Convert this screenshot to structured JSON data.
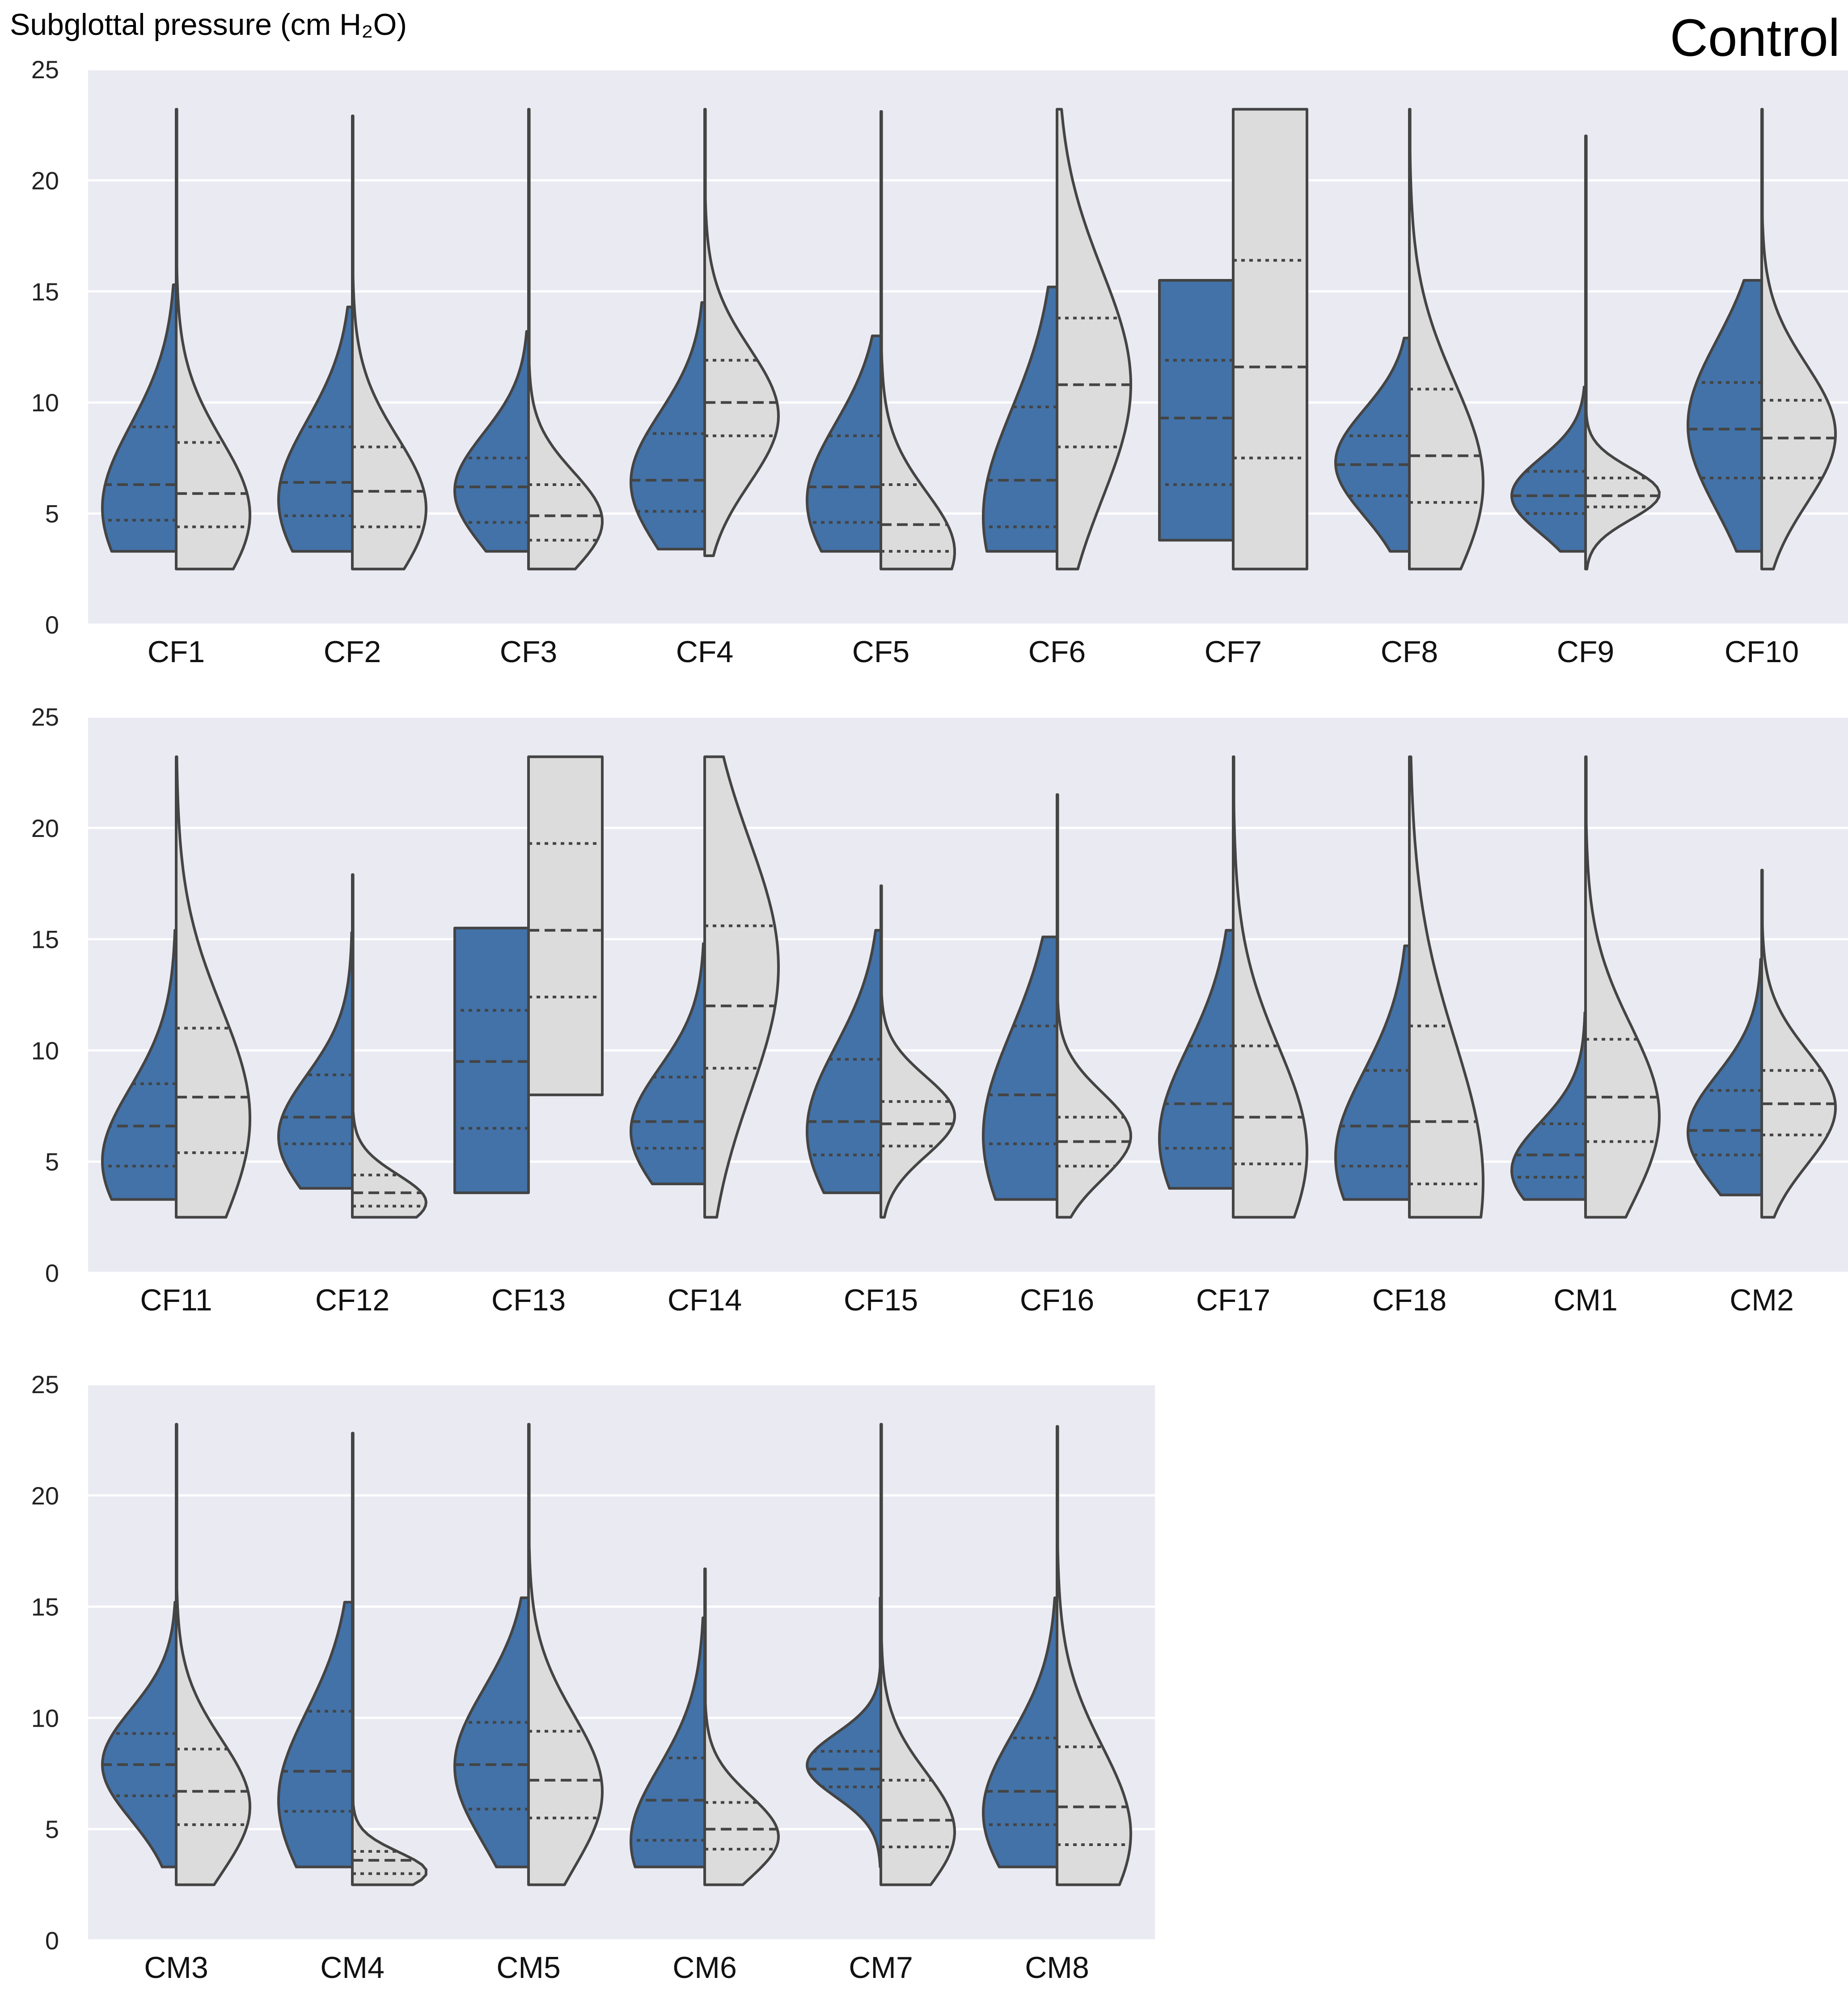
{
  "chart_data": {
    "type": "violin",
    "title": "Control",
    "ylabel": "Subglottal pressure (cm H₂O)",
    "ylim": [
      0,
      25
    ],
    "yticks": [
      0,
      5,
      10,
      15,
      20,
      25
    ],
    "grid": true,
    "split": true,
    "colors": {
      "left": "#4272a8",
      "right": "#dcdcdc",
      "outline": "#444444",
      "panel_bg": "#eaeaf2"
    },
    "panels": [
      {
        "categories": [
          "CF1",
          "CF2",
          "CF3",
          "CF4",
          "CF5",
          "CF6",
          "CF7",
          "CF8",
          "CF9",
          "CF10"
        ],
        "violins": [
          {
            "left": {
              "min": 3.3,
              "max": 15.3,
              "q": [
                4.7,
                6.3,
                8.9
              ],
              "peak": 5.1
            },
            "right": {
              "min": 2.5,
              "max": 23.2,
              "q": [
                4.4,
                5.9,
                8.2
              ],
              "peak": 4.8
            }
          },
          {
            "left": {
              "min": 3.3,
              "max": 14.3,
              "q": [
                4.9,
                6.4,
                8.9
              ],
              "peak": 5.5
            },
            "right": {
              "min": 2.5,
              "max": 22.9,
              "q": [
                4.4,
                6.0,
                8.0
              ],
              "peak": 5.1
            }
          },
          {
            "left": {
              "min": 3.3,
              "max": 13.2,
              "q": [
                4.6,
                6.2,
                7.5
              ],
              "peak": 6.0
            },
            "right": {
              "min": 2.5,
              "max": 23.2,
              "q": [
                3.8,
                4.9,
                6.3
              ],
              "peak": 4.6
            }
          },
          {
            "left": {
              "min": 3.4,
              "max": 14.5,
              "q": [
                5.1,
                6.5,
                8.6
              ],
              "peak": 6.4
            },
            "right": {
              "min": 3.1,
              "max": 23.2,
              "q": [
                8.5,
                10.0,
                11.9
              ],
              "peak": 9.3
            }
          },
          {
            "left": {
              "min": 3.3,
              "max": 13.0,
              "q": [
                4.6,
                6.2,
                8.5
              ],
              "peak": 5.5
            },
            "right": {
              "min": 2.5,
              "max": 23.1,
              "q": [
                3.3,
                4.5,
                6.3
              ],
              "peak": 3.1
            }
          },
          {
            "left": {
              "min": 3.3,
              "max": 15.2,
              "q": [
                4.4,
                6.5,
                9.8
              ],
              "peak": 4.6
            },
            "right": {
              "min": 2.5,
              "max": 23.2,
              "q": [
                8.0,
                10.8,
                13.8
              ],
              "peak": 10.8
            }
          },
          {
            "left": {
              "min": 3.8,
              "max": 15.5,
              "q": [
                6.3,
                9.3,
                11.9
              ],
              "peak": 11.0,
              "flat": true
            },
            "right": {
              "min": 2.5,
              "max": 23.2,
              "q": [
                7.5,
                11.6,
                16.4
              ],
              "peak": 15.5,
              "flat": true
            }
          },
          {
            "left": {
              "min": 3.3,
              "max": 12.9,
              "q": [
                5.8,
                7.2,
                8.5
              ],
              "peak": 7.3
            },
            "right": {
              "min": 2.5,
              "max": 23.2,
              "q": [
                5.5,
                7.6,
                10.6
              ],
              "peak": 6.2
            }
          },
          {
            "left": {
              "min": 3.3,
              "max": 10.7,
              "q": [
                5.0,
                5.8,
                6.9
              ],
              "peak": 5.8
            },
            "right": {
              "min": 2.5,
              "max": 22.0,
              "q": [
                5.3,
                5.8,
                6.6
              ],
              "peak": 5.9
            }
          },
          {
            "left": {
              "min": 3.3,
              "max": 15.5,
              "q": [
                6.6,
                8.8,
                10.9
              ],
              "peak": 9.0
            },
            "right": {
              "min": 2.5,
              "max": 23.2,
              "q": [
                6.6,
                8.4,
                10.1
              ],
              "peak": 8.6
            }
          }
        ]
      },
      {
        "categories": [
          "CF11",
          "CF12",
          "CF13",
          "CF14",
          "CF15",
          "CF16",
          "CF17",
          "CF18",
          "CM1",
          "CM2"
        ],
        "violins": [
          {
            "left": {
              "min": 3.3,
              "max": 15.4,
              "q": [
                4.8,
                6.6,
                8.5
              ],
              "peak": 4.8
            },
            "right": {
              "min": 2.5,
              "max": 23.2,
              "q": [
                5.4,
                7.9,
                11.0
              ],
              "peak": 6.8
            }
          },
          {
            "left": {
              "min": 3.8,
              "max": 15.3,
              "q": [
                5.8,
                7.0,
                8.9
              ],
              "peak": 6.0
            },
            "right": {
              "min": 2.5,
              "max": 17.9,
              "q": [
                3.0,
                3.6,
                4.4
              ],
              "peak": 3.1
            }
          },
          {
            "left": {
              "min": 3.6,
              "max": 15.5,
              "q": [
                6.5,
                9.5,
                11.8
              ],
              "peak": 12.5,
              "flat": true
            },
            "right": {
              "min": 8.0,
              "max": 23.2,
              "q": [
                12.4,
                15.4,
                19.3
              ],
              "peak": 12.3,
              "flat": true
            }
          },
          {
            "left": {
              "min": 4.0,
              "max": 14.8,
              "q": [
                5.6,
                6.8,
                8.8
              ],
              "peak": 6.3
            },
            "right": {
              "min": 2.5,
              "max": 23.2,
              "q": [
                9.2,
                12.0,
                15.6
              ],
              "peak": 14.0
            }
          },
          {
            "left": {
              "min": 3.6,
              "max": 15.4,
              "q": [
                5.3,
                6.8,
                9.6
              ],
              "peak": 6.3
            },
            "right": {
              "min": 2.5,
              "max": 17.4,
              "q": [
                5.7,
                6.7,
                7.7
              ],
              "peak": 7.1
            }
          },
          {
            "left": {
              "min": 3.3,
              "max": 15.1,
              "q": [
                5.8,
                8.0,
                11.1
              ],
              "peak": 5.9
            },
            "right": {
              "min": 2.5,
              "max": 21.5,
              "q": [
                4.8,
                5.9,
                7.0
              ],
              "peak": 6.2
            }
          },
          {
            "left": {
              "min": 3.8,
              "max": 15.4,
              "q": [
                5.6,
                7.6,
                10.2
              ],
              "peak": 5.8
            },
            "right": {
              "min": 2.5,
              "max": 23.2,
              "q": [
                4.9,
                7.0,
                10.2
              ],
              "peak": 5.2
            }
          },
          {
            "left": {
              "min": 3.3,
              "max": 14.7,
              "q": [
                4.8,
                6.6,
                9.1
              ],
              "peak": 5.0
            },
            "right": {
              "min": 2.5,
              "max": 23.2,
              "q": [
                4.0,
                6.8,
                11.1
              ],
              "peak": 3.7
            }
          },
          {
            "left": {
              "min": 3.3,
              "max": 11.7,
              "q": [
                4.3,
                5.3,
                6.7
              ],
              "peak": 4.5
            },
            "right": {
              "min": 2.5,
              "max": 23.2,
              "q": [
                5.9,
                7.9,
                10.5
              ],
              "peak": 6.9
            }
          },
          {
            "left": {
              "min": 3.5,
              "max": 14.1,
              "q": [
                5.3,
                6.4,
                8.2
              ],
              "peak": 6.3
            },
            "right": {
              "min": 2.5,
              "max": 18.1,
              "q": [
                6.2,
                7.6,
                9.1
              ],
              "peak": 7.4
            }
          }
        ]
      },
      {
        "categories": [
          "CM3",
          "CM4",
          "CM5",
          "CM6",
          "CM7",
          "CM8"
        ],
        "violins": [
          {
            "left": {
              "min": 3.3,
              "max": 15.2,
              "q": [
                6.5,
                7.9,
                9.3
              ],
              "peak": 7.9
            },
            "right": {
              "min": 2.5,
              "max": 23.2,
              "q": [
                5.2,
                6.7,
                8.6
              ],
              "peak": 5.9
            }
          },
          {
            "left": {
              "min": 3.3,
              "max": 15.2,
              "q": [
                5.8,
                7.6,
                10.3
              ],
              "peak": 6.1
            },
            "right": {
              "min": 2.5,
              "max": 22.8,
              "q": [
                3.0,
                3.6,
                4.0
              ],
              "peak": 3.0
            }
          },
          {
            "left": {
              "min": 3.3,
              "max": 15.4,
              "q": [
                5.9,
                7.9,
                9.8
              ],
              "peak": 7.8
            },
            "right": {
              "min": 2.5,
              "max": 23.2,
              "q": [
                5.5,
                7.2,
                9.4
              ],
              "peak": 6.6
            }
          },
          {
            "left": {
              "min": 3.3,
              "max": 14.5,
              "q": [
                4.5,
                6.3,
                8.2
              ],
              "peak": 4.2
            },
            "right": {
              "min": 2.5,
              "max": 16.7,
              "q": [
                4.1,
                5.0,
                6.2
              ],
              "peak": 4.6
            }
          },
          {
            "left": {
              "min": 3.3,
              "max": 15.4,
              "q": [
                6.9,
                7.7,
                8.5
              ],
              "peak": 7.9
            },
            "right": {
              "min": 2.5,
              "max": 23.2,
              "q": [
                4.2,
                5.4,
                7.2
              ],
              "peak": 4.8
            }
          },
          {
            "left": {
              "min": 3.3,
              "max": 15.4,
              "q": [
                5.2,
                6.7,
                9.1
              ],
              "peak": 5.6
            },
            "right": {
              "min": 2.5,
              "max": 23.1,
              "q": [
                4.3,
                6.0,
                8.7
              ],
              "peak": 4.6
            }
          }
        ]
      }
    ]
  }
}
